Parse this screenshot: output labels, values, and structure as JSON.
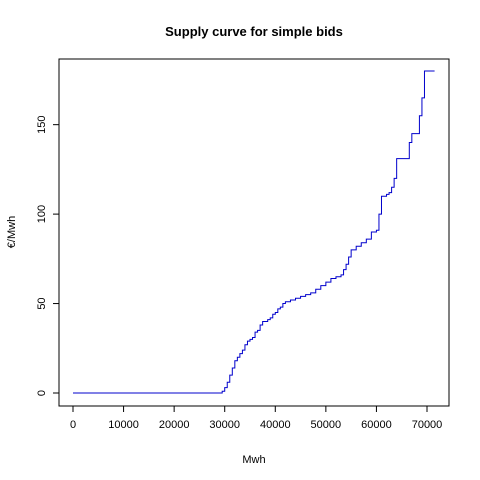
{
  "chart_data": {
    "type": "line",
    "title": "Supply curve for simple bids",
    "xlabel": "Mwh",
    "ylabel": "€/Mwh",
    "xlim": [
      0,
      72000
    ],
    "ylim": [
      0,
      180
    ],
    "x_ticks": [
      "0",
      "10000",
      "20000",
      "30000",
      "40000",
      "50000",
      "60000",
      "70000"
    ],
    "y_ticks": [
      "0",
      "50",
      "100",
      "150"
    ],
    "grid": false,
    "legend": "none",
    "series": [
      {
        "color": "#0000cc",
        "step": true,
        "x": [
          0,
          29000,
          29500,
          30000,
          30500,
          31000,
          31500,
          32000,
          32500,
          33000,
          33500,
          34000,
          34500,
          35000,
          35500,
          36000,
          36500,
          37000,
          37500,
          38000,
          38500,
          39000,
          39500,
          40000,
          40500,
          41000,
          41500,
          42000,
          43000,
          44000,
          45000,
          46000,
          47000,
          48000,
          49000,
          50000,
          51000,
          52000,
          53000,
          53500,
          54000,
          54500,
          55000,
          56000,
          57000,
          58000,
          59000,
          60000,
          60500,
          61000,
          62000,
          62500,
          63000,
          63500,
          64000,
          65000,
          66000,
          66500,
          67000,
          68000,
          68500,
          69000,
          69500,
          70000,
          71500
        ],
        "values": [
          0,
          0,
          1,
          3,
          6,
          10,
          14,
          18,
          20,
          22,
          24,
          27,
          29,
          30,
          31,
          34,
          35,
          38,
          40,
          40,
          41,
          42,
          44,
          45,
          47,
          48,
          50,
          51,
          52,
          53,
          54,
          55,
          56,
          58,
          60,
          62,
          64,
          65,
          66,
          69,
          72,
          76,
          80,
          82,
          84,
          86,
          90,
          91,
          100,
          110,
          111,
          112,
          115,
          120,
          131,
          131,
          131,
          140,
          145,
          145,
          155,
          165,
          180,
          180,
          180
        ]
      }
    ]
  }
}
